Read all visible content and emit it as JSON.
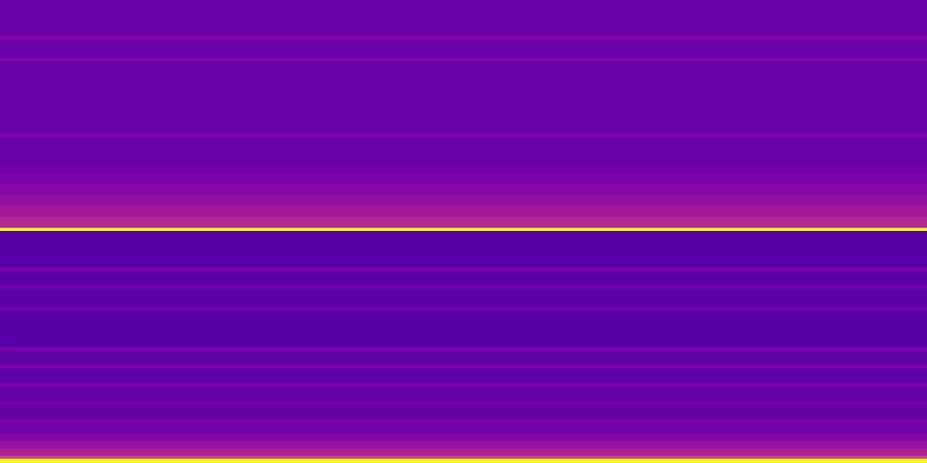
{
  "chart_data": {
    "type": "heatmap",
    "color": "plasma",
    "tick_labels": false,
    "zlim": [
      0,
      1
    ],
    "values": [
      0.2,
      0.2,
      0.2,
      0.2,
      0.2,
      0.2,
      0.2,
      0.2,
      0.2,
      0.2,
      0.27,
      0.2,
      0.2,
      0.2,
      0.2,
      0.2,
      0.27,
      0.2,
      0.2,
      0.2,
      0.2,
      0.2,
      0.2,
      0.2,
      0.2,
      0.2,
      0.2,
      0.2,
      0.2,
      0.2,
      0.2,
      0.2,
      0.2,
      0.2,
      0.2,
      0.2,
      0.2,
      0.26,
      0.2,
      0.2,
      0.2,
      0.2,
      0.2,
      0.2,
      0.2,
      0.22,
      0.22,
      0.22,
      0.25,
      0.25,
      0.25,
      0.28,
      0.28,
      0.28,
      0.31,
      0.31,
      0.31,
      0.35,
      0.35,
      0.35,
      0.4,
      0.4,
      0.4,
      1.0,
      0.15,
      0.15,
      0.15,
      0.15,
      0.15,
      0.15,
      0.15,
      0.15,
      0.15,
      0.15,
      0.25,
      0.16,
      0.16,
      0.16,
      0.16,
      0.24,
      0.16,
      0.16,
      0.16,
      0.16,
      0.16,
      0.23,
      0.15,
      0.15,
      0.15,
      0.15,
      0.15,
      0.15,
      0.15,
      0.15,
      0.15,
      0.15,
      0.24,
      0.17,
      0.17,
      0.17,
      0.17,
      0.24,
      0.17,
      0.17,
      0.17,
      0.17,
      0.25,
      0.18,
      0.18,
      0.18,
      0.18,
      0.24,
      0.19,
      0.19,
      0.19,
      0.19,
      0.25,
      0.22,
      0.22,
      0.22,
      0.27,
      0.27,
      0.32,
      0.32,
      0.38,
      0.38,
      0.5,
      1.0
    ]
  }
}
